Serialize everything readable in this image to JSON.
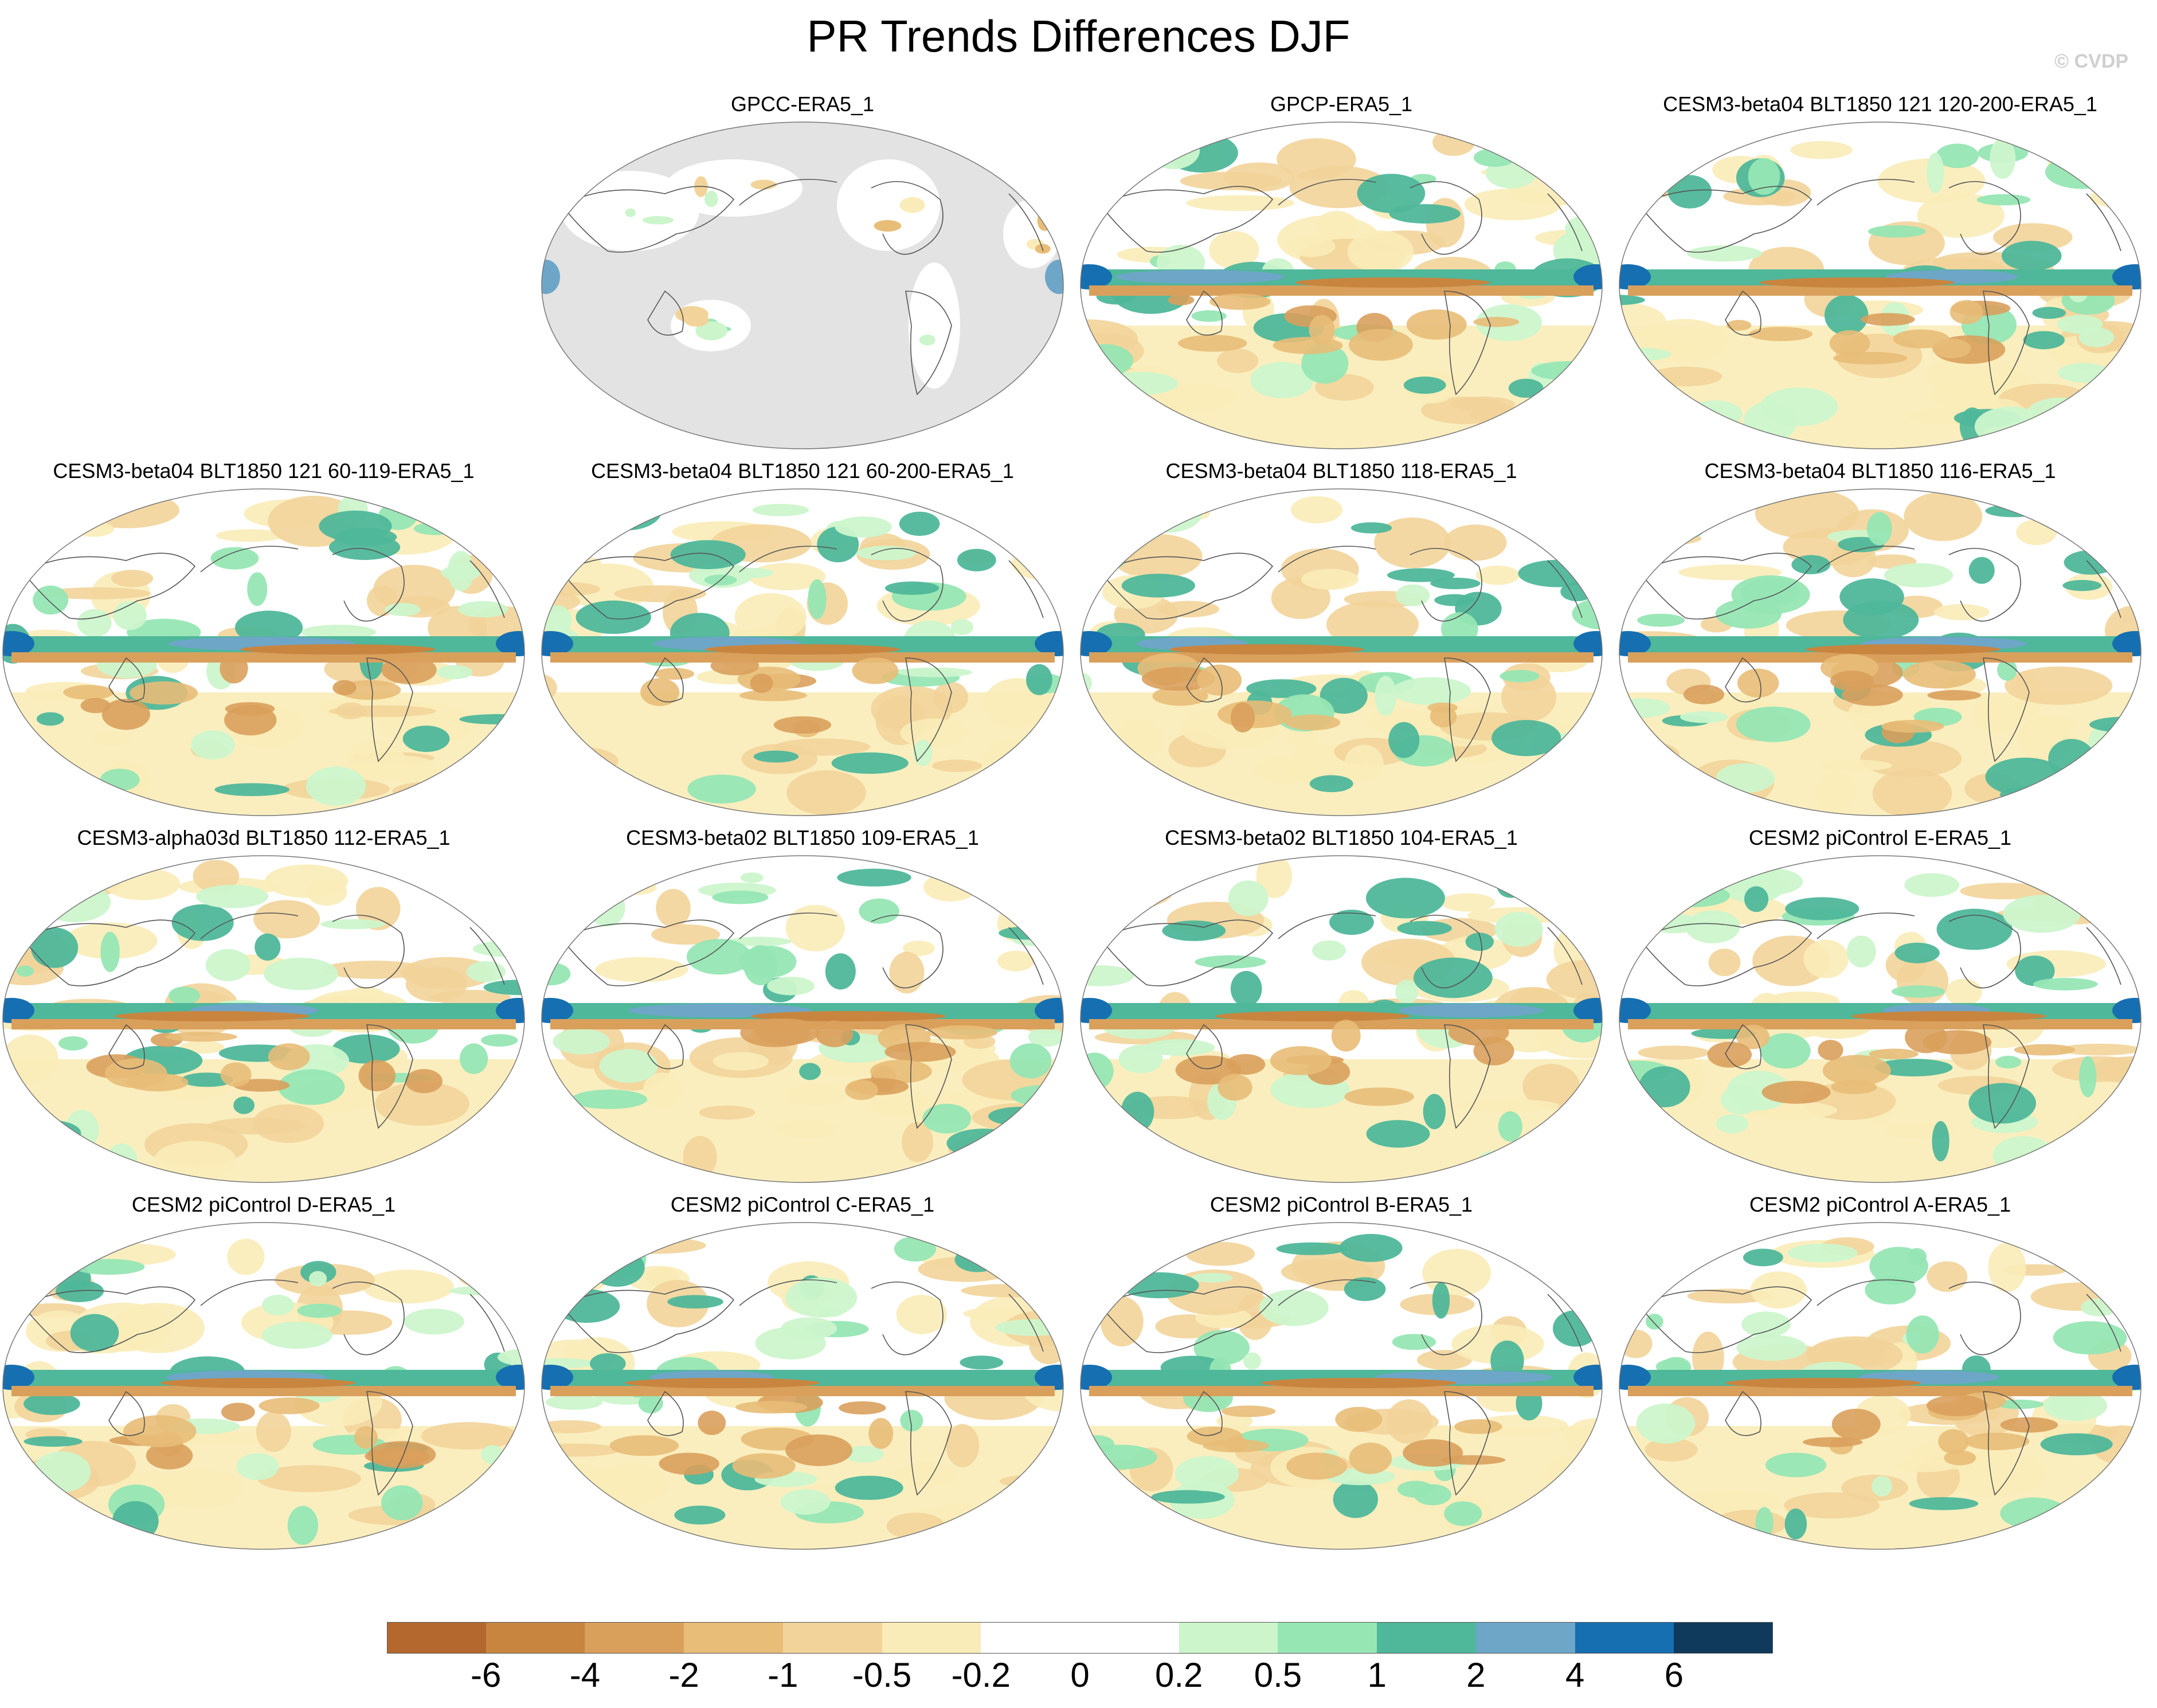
{
  "title": "PR Trends Differences DJF",
  "watermark": "© CVDP",
  "panels": [
    {
      "title": "GPCC-ERA5_1",
      "ocean_masked": true
    },
    {
      "title": "GPCP-ERA5_1",
      "ocean_masked": false
    },
    {
      "title": "CESM3-beta04 BLT1850 121 120-200-ERA5_1",
      "ocean_masked": false
    },
    {
      "title": "CESM3-beta04 BLT1850 121 60-119-ERA5_1",
      "ocean_masked": false
    },
    {
      "title": "CESM3-beta04 BLT1850 121 60-200-ERA5_1",
      "ocean_masked": false
    },
    {
      "title": "CESM3-beta04 BLT1850 118-ERA5_1",
      "ocean_masked": false
    },
    {
      "title": "CESM3-beta04 BLT1850 116-ERA5_1",
      "ocean_masked": false
    },
    {
      "title": "CESM3-alpha03d BLT1850 112-ERA5_1",
      "ocean_masked": false
    },
    {
      "title": "CESM3-beta02 BLT1850 109-ERA5_1",
      "ocean_masked": false
    },
    {
      "title": "CESM3-beta02 BLT1850 104-ERA5_1",
      "ocean_masked": false
    },
    {
      "title": "CESM2 piControl E-ERA5_1",
      "ocean_masked": false
    },
    {
      "title": "CESM2 piControl D-ERA5_1",
      "ocean_masked": false
    },
    {
      "title": "CESM2 piControl C-ERA5_1",
      "ocean_masked": false
    },
    {
      "title": "CESM2 piControl B-ERA5_1",
      "ocean_masked": false
    },
    {
      "title": "CESM2 piControl A-ERA5_1",
      "ocean_masked": false
    }
  ],
  "colorbar": {
    "colors": [
      "#b4682d",
      "#c8853f",
      "#d9a05c",
      "#e8bd78",
      "#f2d49a",
      "#faecb8",
      "#ffffff",
      "#ffffff",
      "#ccf5cc",
      "#96e6b4",
      "#4fb79a",
      "#6ea6c8",
      "#166fb0",
      "#0f3a5c"
    ],
    "tick_labels": [
      "-6",
      "-4",
      "-2",
      "-1",
      "-0.5",
      "-0.2",
      "0",
      "0.2",
      "0.5",
      "1",
      "2",
      "4",
      "6"
    ]
  }
}
